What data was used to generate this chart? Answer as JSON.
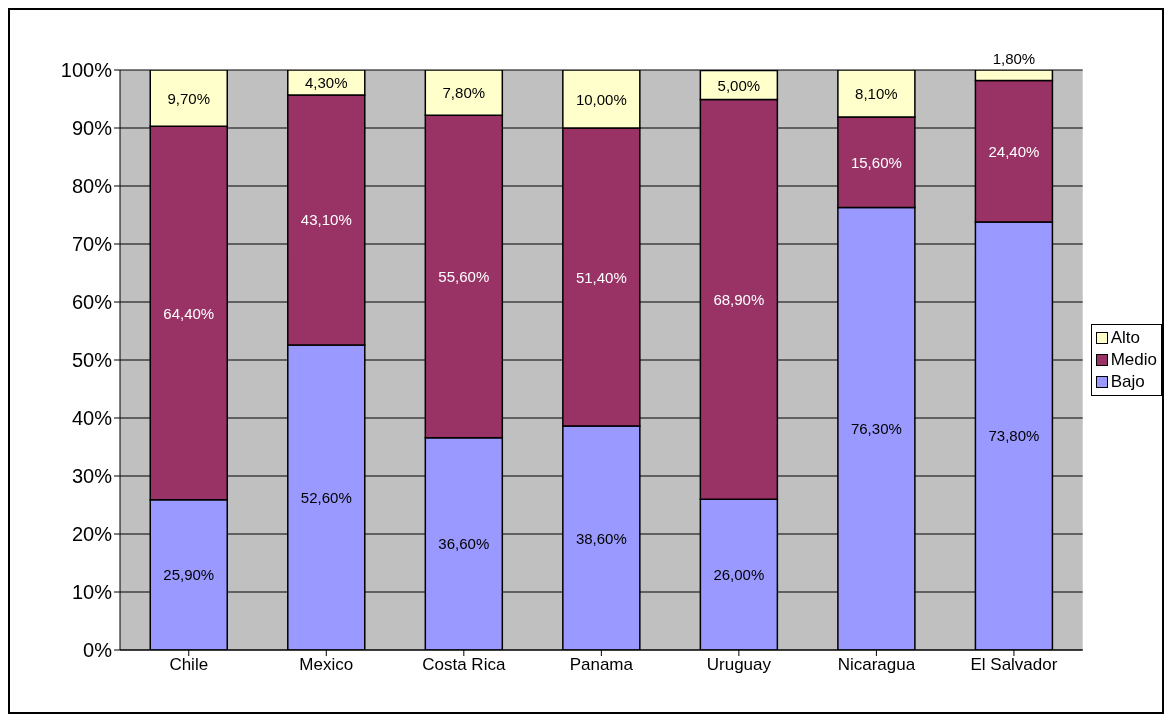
{
  "chart_data": {
    "type": "bar",
    "stacked": true,
    "categories": [
      "Chile",
      "Mexico",
      "Costa Rica",
      "Panama",
      "Uruguay",
      "Nicaragua",
      "El Salvador"
    ],
    "series": [
      {
        "name": "Bajo",
        "color": "#9999ff",
        "values": [
          25.9,
          52.6,
          36.6,
          38.6,
          26.0,
          76.3,
          73.8
        ],
        "value_labels": [
          "25,90%",
          "52,60%",
          "36,60%",
          "38,60%",
          "26,00%",
          "76,30%",
          "73,80%"
        ]
      },
      {
        "name": "Medio",
        "color": "#993366",
        "values": [
          64.4,
          43.1,
          55.6,
          51.4,
          68.9,
          15.6,
          24.4
        ],
        "value_labels": [
          "64,40%",
          "43,10%",
          "55,60%",
          "51,40%",
          "68,90%",
          "15,60%",
          "24,40%"
        ]
      },
      {
        "name": "Alto",
        "color": "#ffffcc",
        "values": [
          9.7,
          4.3,
          7.8,
          10.0,
          5.0,
          8.1,
          1.8
        ],
        "value_labels": [
          "9,70%",
          "4,30%",
          "7,80%",
          "10,00%",
          "5,00%",
          "8,10%",
          "1,80%"
        ]
      }
    ],
    "ylim": [
      0,
      100
    ],
    "yticks": [
      {
        "value": 0,
        "label": "0%"
      },
      {
        "value": 10,
        "label": "10%"
      },
      {
        "value": 20,
        "label": "20%"
      },
      {
        "value": 30,
        "label": "30%"
      },
      {
        "value": 40,
        "label": "40%"
      },
      {
        "value": 50,
        "label": "50%"
      },
      {
        "value": 60,
        "label": "60%"
      },
      {
        "value": 70,
        "label": "70%"
      },
      {
        "value": 80,
        "label": "80%"
      },
      {
        "value": 90,
        "label": "90%"
      },
      {
        "value": 100,
        "label": "100%"
      }
    ],
    "grid": "y",
    "legend": "right"
  }
}
